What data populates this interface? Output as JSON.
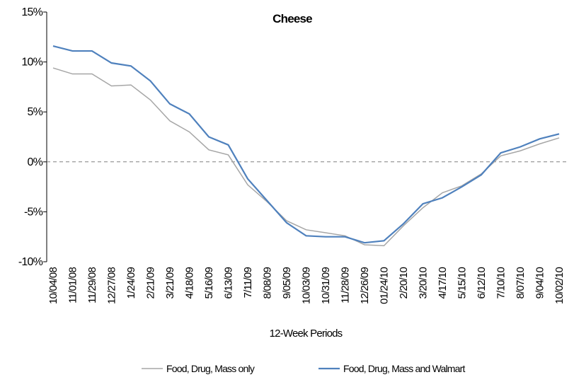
{
  "chart_data": {
    "type": "line",
    "title": "Cheese",
    "x_label": "12-Week Periods",
    "categories": [
      "10/04/08",
      "11/01/08",
      "11/29/08",
      "12/27/08",
      "1/24/09",
      "2/21/09",
      "3/21/09",
      "4/18/09",
      "5/16/09",
      "6/13/09",
      "7/11/09",
      "8/08/09",
      "9/05/09",
      "10/03/09",
      "10/31/09",
      "11/28/09",
      "12/26/09",
      "01/24/10",
      "2/20/10",
      "3/20/10",
      "4/17/10",
      "5/15/10",
      "6/12/10",
      "7/10/10",
      "8/07/10",
      "9/04/10",
      "10/02/10"
    ],
    "series": [
      {
        "name": "Food, Drug, Mass only",
        "color": "#a6a6a6",
        "values": [
          9.4,
          8.8,
          8.8,
          7.6,
          7.7,
          6.2,
          4.1,
          3.0,
          1.2,
          0.7,
          -2.3,
          -4.0,
          -5.9,
          -6.8,
          -7.1,
          -7.4,
          -8.3,
          -8.4,
          -6.4,
          -4.6,
          -3.1,
          -2.4,
          -1.2,
          0.6,
          1.1,
          1.8,
          2.4
        ]
      },
      {
        "name": "Food, Drug, Mass and Walmart",
        "color": "#4f81bd",
        "values": [
          11.6,
          11.1,
          11.1,
          9.9,
          9.6,
          8.1,
          5.8,
          4.8,
          2.5,
          1.7,
          -1.7,
          -3.9,
          -6.1,
          -7.4,
          -7.5,
          -7.5,
          -8.1,
          -7.9,
          -6.2,
          -4.2,
          -3.6,
          -2.5,
          -1.3,
          0.9,
          1.5,
          2.3,
          2.8
        ]
      }
    ],
    "ylim": [
      -10,
      15
    ],
    "yticks": [
      {
        "value": -10,
        "label": "-10%"
      },
      {
        "value": -5,
        "label": "-5%"
      },
      {
        "value": 0,
        "label": "0%"
      },
      {
        "value": 5,
        "label": "5%"
      },
      {
        "value": 10,
        "label": "10%"
      },
      {
        "value": 15,
        "label": "15%"
      }
    ],
    "zero_line": true,
    "legend": "bottom"
  }
}
